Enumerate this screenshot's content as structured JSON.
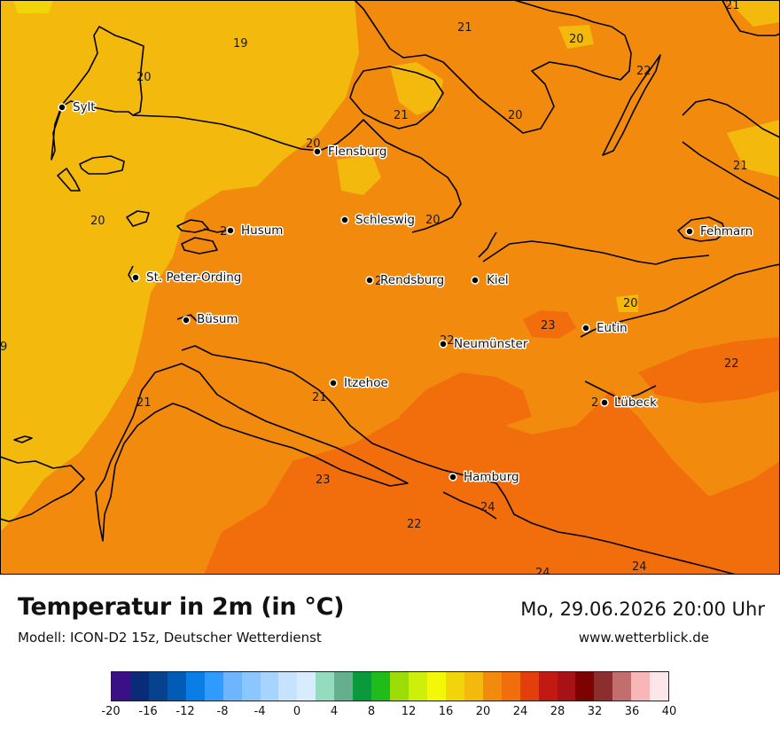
{
  "header": {
    "title": "Temperatur in 2m (in °C)",
    "model": "Modell: ICON-D2 15z, Deutscher Wetterdienst",
    "datetime": "Mo, 29.06.2026 20:00 Uhr",
    "website": "www.wetterblick.de"
  },
  "cities": [
    {
      "name": "Sylt"
    },
    {
      "name": "Flensburg"
    },
    {
      "name": "Schleswig"
    },
    {
      "name": "Husum"
    },
    {
      "name": "St. Peter-Ording"
    },
    {
      "name": "Rendsburg"
    },
    {
      "name": "Kiel"
    },
    {
      "name": "Fehmarn"
    },
    {
      "name": "Büsum"
    },
    {
      "name": "Eutin"
    },
    {
      "name": "Neumünster"
    },
    {
      "name": "Itzehoe"
    },
    {
      "name": "Lübeck"
    },
    {
      "name": "Hamburg"
    }
  ],
  "isolines": [
    "21",
    "20",
    "19",
    "20",
    "21",
    "22",
    "20",
    "20",
    "21",
    "20",
    "21",
    "2",
    "20",
    "2",
    "20",
    "9",
    "23",
    "22",
    "22",
    "21",
    "21",
    "2",
    "23",
    "24",
    "22",
    "24",
    "24"
  ],
  "legend": {
    "colors": [
      "#3b0f85",
      "#0a2c78",
      "#07428f",
      "#005cb5",
      "#0a7ee6",
      "#2f9bff",
      "#6db6ff",
      "#8cc6ff",
      "#a7d4ff",
      "#c6e2ff",
      "#d9ebff",
      "#94dbc0",
      "#64b08c",
      "#0a9a3c",
      "#1fbd1a",
      "#9ddd07",
      "#cdef0a",
      "#f2f807",
      "#f1d40a",
      "#f3b90c",
      "#f28a0e",
      "#f26e0c",
      "#e33e0c",
      "#c21a12",
      "#a81116",
      "#7d0202",
      "#8c2e2e",
      "#c26e6e",
      "#f8b6b6",
      "#fde6ea"
    ],
    "ticks": [
      "-20",
      "-16",
      "-12",
      "-8",
      "-4",
      "0",
      "4",
      "8",
      "12",
      "16",
      "20",
      "24",
      "28",
      "32",
      "36",
      "40"
    ],
    "min": -20,
    "max": 40
  },
  "field_colors": {
    "t19_20": "#f3b90c",
    "t20_22": "#f28a0e",
    "t22_24": "#f26e0c",
    "coast_line": "#000000"
  }
}
